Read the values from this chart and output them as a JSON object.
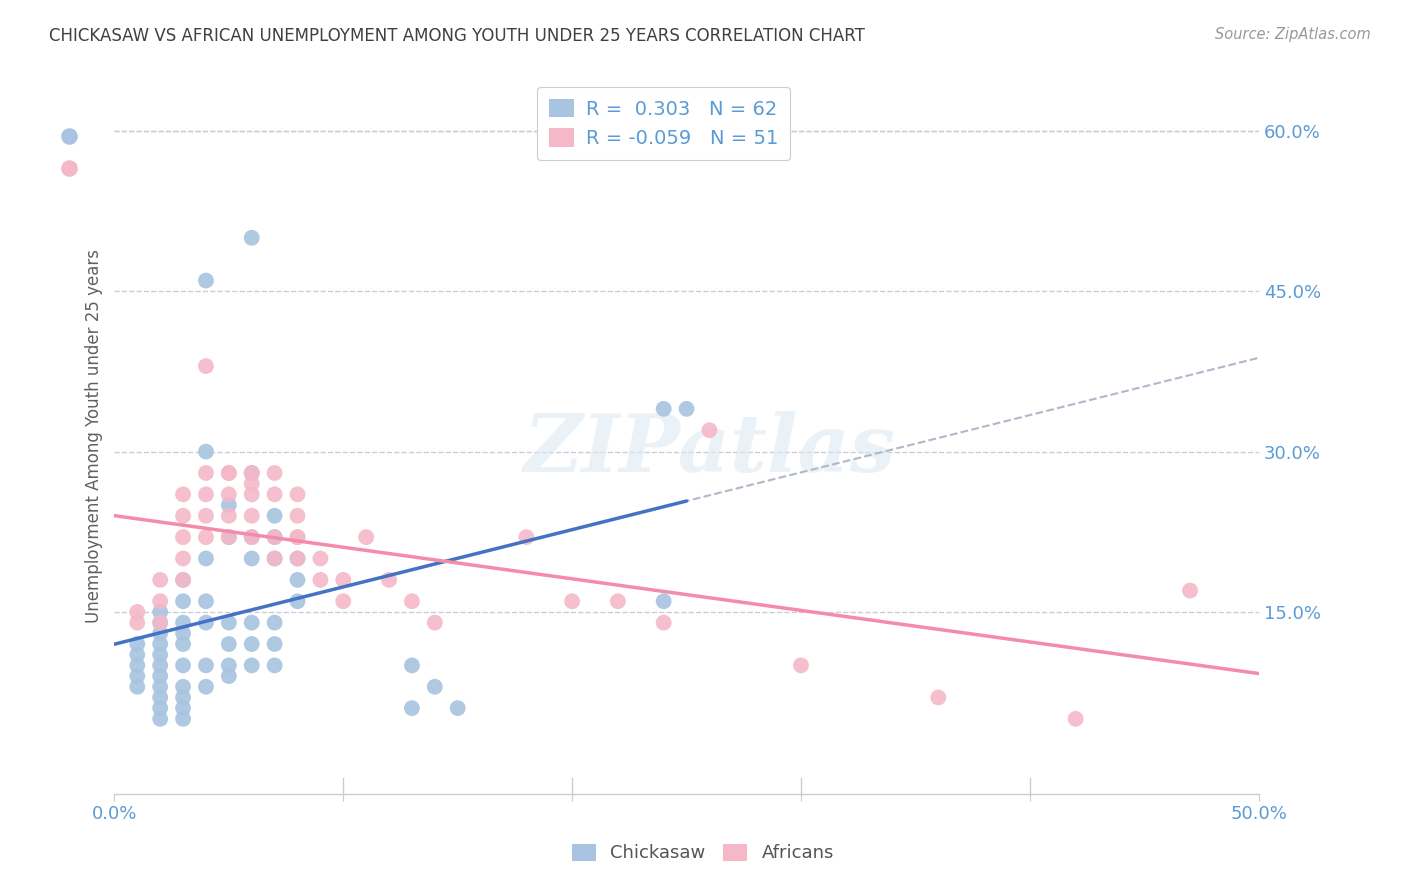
{
  "title": "CHICKASAW VS AFRICAN UNEMPLOYMENT AMONG YOUTH UNDER 25 YEARS CORRELATION CHART",
  "source": "Source: ZipAtlas.com",
  "ylabel": "Unemployment Among Youth under 25 years",
  "right_yticks": [
    "60.0%",
    "45.0%",
    "30.0%",
    "15.0%"
  ],
  "right_ytick_vals": [
    0.6,
    0.45,
    0.3,
    0.15
  ],
  "xlim": [
    0.0,
    0.5
  ],
  "ylim": [
    -0.02,
    0.65
  ],
  "chickasaw_color": "#a8c4e0",
  "africans_color": "#f4b8c8",
  "chickasaw_line_color": "#4472C4",
  "africans_line_color": "#F48BAB",
  "r_chickasaw": 0.303,
  "n_chickasaw": 62,
  "r_africans": -0.059,
  "n_africans": 51,
  "chickasaw_scatter": [
    [
      0.01,
      0.1
    ],
    [
      0.01,
      0.11
    ],
    [
      0.01,
      0.09
    ],
    [
      0.01,
      0.08
    ],
    [
      0.01,
      0.12
    ],
    [
      0.02,
      0.1
    ],
    [
      0.02,
      0.11
    ],
    [
      0.02,
      0.09
    ],
    [
      0.02,
      0.08
    ],
    [
      0.02,
      0.12
    ],
    [
      0.02,
      0.13
    ],
    [
      0.02,
      0.07
    ],
    [
      0.02,
      0.06
    ],
    [
      0.02,
      0.05
    ],
    [
      0.02,
      0.14
    ],
    [
      0.02,
      0.15
    ],
    [
      0.03,
      0.1
    ],
    [
      0.03,
      0.12
    ],
    [
      0.03,
      0.13
    ],
    [
      0.03,
      0.14
    ],
    [
      0.03,
      0.16
    ],
    [
      0.03,
      0.18
    ],
    [
      0.03,
      0.08
    ],
    [
      0.03,
      0.07
    ],
    [
      0.03,
      0.06
    ],
    [
      0.03,
      0.05
    ],
    [
      0.04,
      0.14
    ],
    [
      0.04,
      0.16
    ],
    [
      0.04,
      0.2
    ],
    [
      0.04,
      0.3
    ],
    [
      0.04,
      0.1
    ],
    [
      0.04,
      0.08
    ],
    [
      0.05,
      0.12
    ],
    [
      0.05,
      0.14
    ],
    [
      0.05,
      0.22
    ],
    [
      0.05,
      0.25
    ],
    [
      0.05,
      0.1
    ],
    [
      0.05,
      0.09
    ],
    [
      0.06,
      0.2
    ],
    [
      0.06,
      0.22
    ],
    [
      0.06,
      0.28
    ],
    [
      0.06,
      0.14
    ],
    [
      0.06,
      0.12
    ],
    [
      0.06,
      0.1
    ],
    [
      0.07,
      0.2
    ],
    [
      0.07,
      0.22
    ],
    [
      0.07,
      0.24
    ],
    [
      0.07,
      0.14
    ],
    [
      0.07,
      0.12
    ],
    [
      0.07,
      0.1
    ],
    [
      0.08,
      0.2
    ],
    [
      0.08,
      0.18
    ],
    [
      0.08,
      0.16
    ],
    [
      0.04,
      0.46
    ],
    [
      0.06,
      0.5
    ],
    [
      0.24,
      0.34
    ],
    [
      0.25,
      0.34
    ],
    [
      0.24,
      0.16
    ],
    [
      0.14,
      0.08
    ],
    [
      0.13,
      0.06
    ],
    [
      0.13,
      0.1
    ],
    [
      0.15,
      0.06
    ]
  ],
  "africans_scatter": [
    [
      0.01,
      0.14
    ],
    [
      0.01,
      0.15
    ],
    [
      0.02,
      0.14
    ],
    [
      0.02,
      0.16
    ],
    [
      0.02,
      0.18
    ],
    [
      0.03,
      0.2
    ],
    [
      0.03,
      0.22
    ],
    [
      0.03,
      0.24
    ],
    [
      0.03,
      0.26
    ],
    [
      0.03,
      0.18
    ],
    [
      0.04,
      0.28
    ],
    [
      0.04,
      0.26
    ],
    [
      0.04,
      0.24
    ],
    [
      0.04,
      0.22
    ],
    [
      0.04,
      0.38
    ],
    [
      0.05,
      0.28
    ],
    [
      0.05,
      0.26
    ],
    [
      0.05,
      0.24
    ],
    [
      0.05,
      0.28
    ],
    [
      0.05,
      0.22
    ],
    [
      0.06,
      0.27
    ],
    [
      0.06,
      0.26
    ],
    [
      0.06,
      0.28
    ],
    [
      0.06,
      0.24
    ],
    [
      0.06,
      0.22
    ],
    [
      0.07,
      0.28
    ],
    [
      0.07,
      0.26
    ],
    [
      0.07,
      0.22
    ],
    [
      0.07,
      0.2
    ],
    [
      0.08,
      0.22
    ],
    [
      0.08,
      0.2
    ],
    [
      0.08,
      0.24
    ],
    [
      0.08,
      0.26
    ],
    [
      0.08,
      0.22
    ],
    [
      0.09,
      0.2
    ],
    [
      0.09,
      0.18
    ],
    [
      0.1,
      0.18
    ],
    [
      0.1,
      0.16
    ],
    [
      0.11,
      0.22
    ],
    [
      0.12,
      0.18
    ],
    [
      0.13,
      0.16
    ],
    [
      0.14,
      0.14
    ],
    [
      0.18,
      0.22
    ],
    [
      0.2,
      0.16
    ],
    [
      0.22,
      0.16
    ],
    [
      0.24,
      0.14
    ],
    [
      0.26,
      0.32
    ],
    [
      0.3,
      0.1
    ],
    [
      0.36,
      0.07
    ],
    [
      0.42,
      0.05
    ],
    [
      0.47,
      0.17
    ]
  ],
  "watermark": "ZIPatlas",
  "background_color": "#ffffff",
  "grid_color": "#ccccdd",
  "title_color": "#404040",
  "axis_label_color": "#5b9bd5",
  "legend_box_chickasaw": "#a8c4e0",
  "legend_box_africans": "#f4b8c8"
}
